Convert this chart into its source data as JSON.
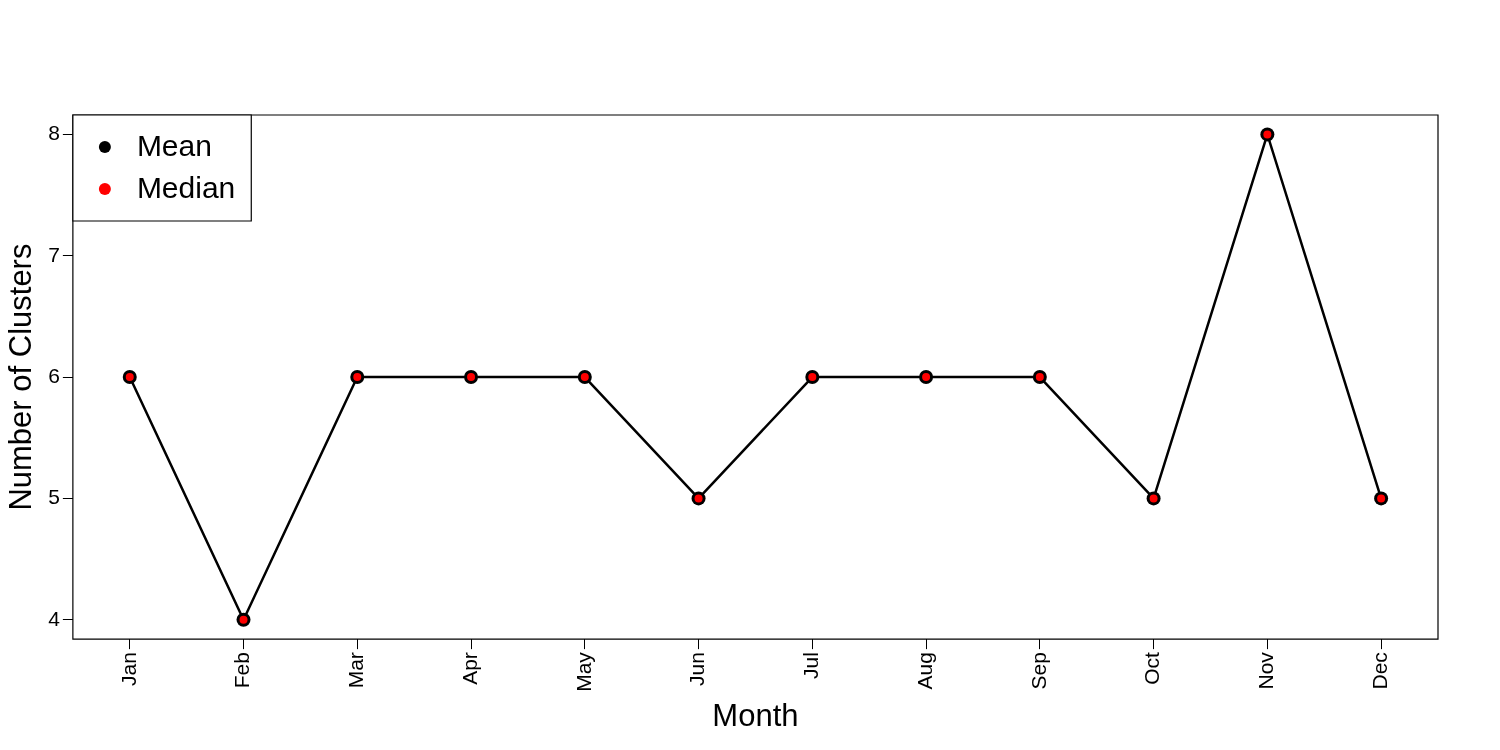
{
  "chart_data": {
    "type": "line",
    "xlabel": "Month",
    "ylabel": "Number of Clusters",
    "categories": [
      "Jan",
      "Feb",
      "Mar",
      "Apr",
      "May",
      "Jun",
      "Jul",
      "Aug",
      "Sep",
      "Oct",
      "Nov",
      "Dec"
    ],
    "series": [
      {
        "name": "Mean",
        "color": "#000000",
        "values": [
          6,
          4,
          6,
          6,
          6,
          5,
          6,
          6,
          6,
          5,
          8,
          5
        ]
      },
      {
        "name": "Median",
        "type": "scatter",
        "color": "#ff0000",
        "values": [
          6,
          4,
          6,
          6,
          6,
          5,
          6,
          6,
          6,
          5,
          8,
          5
        ]
      }
    ],
    "ylim": [
      3.84,
      8.16
    ],
    "yticks": [
      4,
      5,
      6,
      7,
      8
    ],
    "grid": false,
    "legend": "top left",
    "marker": "circle",
    "line_style": "solid"
  }
}
